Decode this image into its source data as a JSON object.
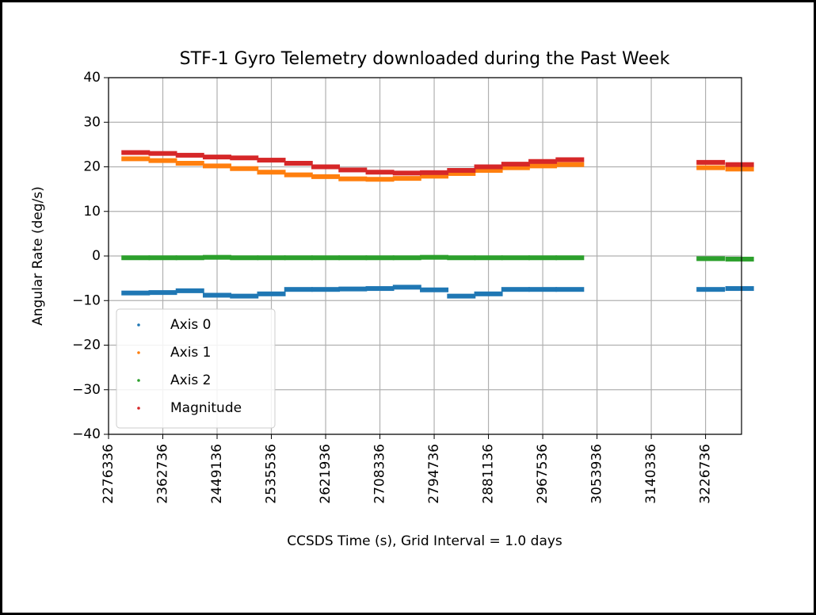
{
  "chart_data": {
    "type": "scatter",
    "title": "STF-1 Gyro Telemetry downloaded during the Past Week",
    "x_label": "CCSDS Time (s), Grid Interval =  1.0 days",
    "y_label": "Angular Rate (deg/s)",
    "x": [
      2319536,
      2362736,
      2405936,
      2449136,
      2492336,
      2535536,
      2578736,
      2621936,
      2665136,
      2708336,
      2751536,
      2794736,
      2837936,
      2881136,
      2924336,
      2967536,
      3010736,
      3235000,
      3281000
    ],
    "series": [
      {
        "name": "Axis 0",
        "color": "#1f77b4",
        "values": [
          -8.3,
          -8.2,
          -7.8,
          -8.8,
          -9,
          -8.5,
          -7.5,
          -7.5,
          -7.4,
          -7.3,
          -7.0,
          -7.6,
          -9,
          -8.5,
          -7.5,
          -7.5,
          -7.5,
          -7.5,
          -7.3
        ]
      },
      {
        "name": "Axis 1",
        "color": "#ff7f0e",
        "values": [
          21.8,
          21.4,
          20.8,
          20.2,
          19.6,
          18.8,
          18.2,
          17.8,
          17.3,
          17.2,
          17.4,
          17.9,
          18.5,
          19.2,
          19.8,
          20.2,
          20.5,
          19.8,
          19.5
        ]
      },
      {
        "name": "Axis 2",
        "color": "#2ca02c",
        "values": [
          -0.4,
          -0.4,
          -0.4,
          -0.3,
          -0.4,
          -0.4,
          -0.4,
          -0.4,
          -0.4,
          -0.4,
          -0.4,
          -0.3,
          -0.4,
          -0.4,
          -0.4,
          -0.4,
          -0.4,
          -0.6,
          -0.7
        ]
      },
      {
        "name": "Magnitude",
        "color": "#d62728",
        "values": [
          23.2,
          23,
          22.6,
          22.2,
          22,
          21.5,
          20.8,
          20,
          19.3,
          18.8,
          18.6,
          18.7,
          19.2,
          20,
          20.6,
          21.2,
          21.6,
          21,
          20.5
        ]
      }
    ],
    "xlim": [
      2276336,
      3284000
    ],
    "xticks": [
      2276336,
      2362736,
      2449136,
      2535536,
      2621936,
      2708336,
      2794736,
      2881136,
      2967536,
      3053936,
      3140336,
      3226736
    ],
    "ylim": [
      -40,
      40
    ],
    "yticks": [
      40,
      30,
      20,
      10,
      0,
      {
        "value": -10,
        "label": "−10"
      },
      {
        "value": -20,
        "label": "−20"
      },
      {
        "value": -30,
        "label": "−30"
      },
      {
        "value": -40,
        "label": "−40"
      }
    ],
    "grid": true,
    "legend": "lower left"
  }
}
